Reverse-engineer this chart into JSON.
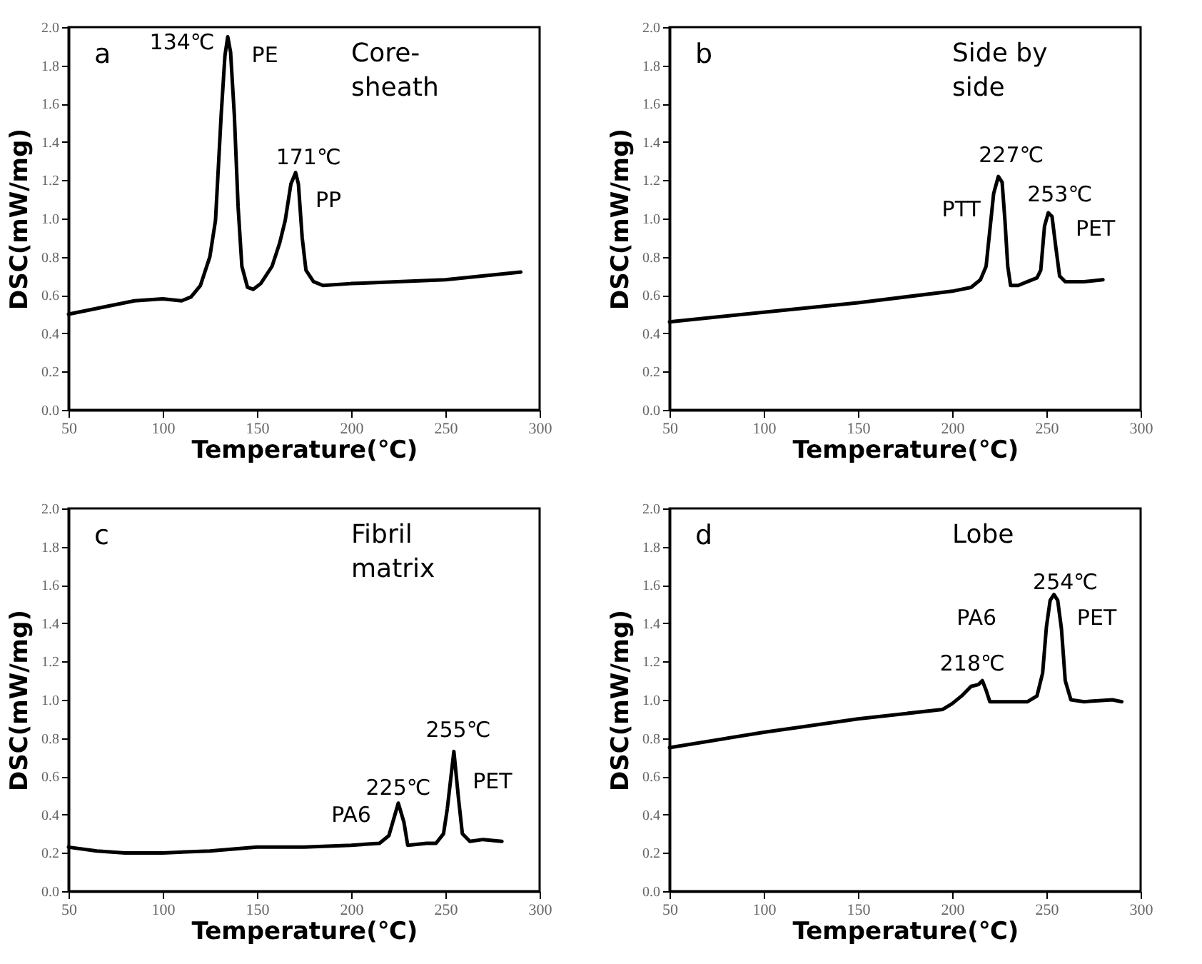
{
  "chart_data": [
    {
      "type": "line",
      "xlabel": "Temperature(℃)",
      "ylabel": "DSC(mW/mg)",
      "color": "#000000",
      "xlim": [
        50,
        300
      ],
      "ylim": [
        0,
        2
      ],
      "xticks": [
        50,
        100,
        150,
        200,
        250,
        300
      ],
      "yticks": [
        {
          "value": 0,
          "label": "0.0"
        },
        {
          "value": 0.2,
          "label": "0.2"
        },
        {
          "value": 0.4,
          "label": "0.4"
        },
        {
          "value": 0.6,
          "label": "0.6"
        },
        {
          "value": 0.8,
          "label": "0.8"
        },
        {
          "value": 1,
          "label": "1.0"
        },
        {
          "value": 1.2,
          "label": "1.2"
        },
        {
          "value": 1.4,
          "label": "1.4"
        },
        {
          "value": 1.6,
          "label": "1.6"
        },
        {
          "value": 1.8,
          "label": "1.8"
        },
        {
          "value": 2,
          "label": "2.0"
        }
      ],
      "x": [
        50,
        70,
        85,
        100,
        110,
        115,
        120,
        125,
        128,
        131,
        133,
        134.5,
        136,
        138,
        140,
        142,
        145,
        148,
        152,
        158,
        162,
        165,
        168,
        170.5,
        172,
        174,
        176,
        180,
        185,
        200,
        250,
        290
      ],
      "values": [
        0.5,
        0.54,
        0.57,
        0.58,
        0.57,
        0.59,
        0.65,
        0.8,
        0.99,
        1.54,
        1.85,
        1.95,
        1.87,
        1.54,
        1.06,
        0.75,
        0.64,
        0.63,
        0.66,
        0.75,
        0.87,
        0.99,
        1.18,
        1.24,
        1.18,
        0.9,
        0.73,
        0.67,
        0.65,
        0.66,
        0.68,
        0.72
      ],
      "annotations": [
        "a",
        "Core-sheath",
        {
          "text": "134℃",
          "x": 134.5,
          "y": 1.95
        },
        {
          "text": "PE",
          "x": 134.5,
          "y": 1.95
        },
        {
          "text": "171℃",
          "x": 170.5,
          "y": 1.24
        },
        {
          "text": "PP",
          "x": 170.5,
          "y": 1.24
        }
      ]
    },
    {
      "type": "line",
      "xlabel": "Temperature(℃)",
      "ylabel": "DSC(mW/mg)",
      "color": "#000000",
      "xlim": [
        50,
        300
      ],
      "ylim": [
        0,
        2
      ],
      "xticks": [
        50,
        100,
        150,
        200,
        250,
        300
      ],
      "yticks": [
        {
          "value": 0,
          "label": "0.0"
        },
        {
          "value": 0.2,
          "label": "0.2"
        },
        {
          "value": 0.4,
          "label": "0.4"
        },
        {
          "value": 0.6,
          "label": "0.6"
        },
        {
          "value": 0.8,
          "label": "0.8"
        },
        {
          "value": 1,
          "label": "1.0"
        },
        {
          "value": 1.2,
          "label": "1.2"
        },
        {
          "value": 1.4,
          "label": "1.4"
        },
        {
          "value": 1.6,
          "label": "1.6"
        },
        {
          "value": 1.8,
          "label": "1.8"
        },
        {
          "value": 2,
          "label": "2.0"
        }
      ],
      "x": [
        50,
        100,
        150,
        200,
        210,
        215,
        218,
        220,
        222,
        224.5,
        226.5,
        228,
        229.5,
        231,
        235,
        240,
        245,
        247,
        249,
        251,
        253,
        255,
        257,
        260,
        270,
        280
      ],
      "values": [
        0.46,
        0.51,
        0.56,
        0.62,
        0.64,
        0.68,
        0.75,
        0.94,
        1.13,
        1.22,
        1.19,
        0.99,
        0.75,
        0.65,
        0.65,
        0.67,
        0.69,
        0.73,
        0.96,
        1.03,
        1.01,
        0.85,
        0.7,
        0.67,
        0.67,
        0.68
      ],
      "annotations": [
        "b",
        "Side by side",
        {
          "text": "227℃",
          "x": 224.5,
          "y": 1.22
        },
        {
          "text": "253℃",
          "x": 251,
          "y": 1.03
        },
        {
          "text": "PTT",
          "x": 224.5,
          "y": 1.22
        },
        {
          "text": "PET",
          "x": 251,
          "y": 1.03
        }
      ]
    },
    {
      "type": "line",
      "xlabel": "Temperature(℃)",
      "ylabel": "DSC(mW/mg)",
      "color": "#000000",
      "xlim": [
        50,
        300
      ],
      "ylim": [
        0,
        2
      ],
      "xticks": [
        50,
        100,
        150,
        200,
        250,
        300
      ],
      "yticks": [
        {
          "value": 0,
          "label": "0.0"
        },
        {
          "value": 0.2,
          "label": "0.2"
        },
        {
          "value": 0.4,
          "label": "0.4"
        },
        {
          "value": 0.6,
          "label": "0.6"
        },
        {
          "value": 0.8,
          "label": "0.8"
        },
        {
          "value": 1,
          "label": "1.0"
        },
        {
          "value": 1.2,
          "label": "1.2"
        },
        {
          "value": 1.4,
          "label": "1.4"
        },
        {
          "value": 1.6,
          "label": "1.6"
        },
        {
          "value": 1.8,
          "label": "1.8"
        },
        {
          "value": 2,
          "label": "2.0"
        }
      ],
      "x": [
        50,
        65,
        80,
        100,
        125,
        150,
        175,
        200,
        215,
        220,
        225,
        228,
        230,
        240,
        245,
        249,
        251,
        254.5,
        257,
        259,
        263,
        270,
        280
      ],
      "values": [
        0.23,
        0.21,
        0.2,
        0.2,
        0.21,
        0.23,
        0.23,
        0.24,
        0.25,
        0.29,
        0.46,
        0.36,
        0.24,
        0.25,
        0.25,
        0.3,
        0.43,
        0.73,
        0.48,
        0.3,
        0.26,
        0.27,
        0.26
      ],
      "annotations": [
        "c",
        "Fibril matrix",
        {
          "text": "255℃",
          "x": 254.5,
          "y": 0.73
        },
        {
          "text": "225℃",
          "x": 225,
          "y": 0.46
        },
        {
          "text": "PA6",
          "x": 225,
          "y": 0.46
        },
        {
          "text": "PET",
          "x": 254.5,
          "y": 0.73
        }
      ]
    },
    {
      "type": "line",
      "xlabel": "Temperature(℃)",
      "ylabel": "DSC(mW/mg)",
      "color": "#000000",
      "xlim": [
        50,
        300
      ],
      "ylim": [
        0,
        2
      ],
      "xticks": [
        50,
        100,
        150,
        200,
        250,
        300
      ],
      "yticks": [
        {
          "value": 0,
          "label": "0.0"
        },
        {
          "value": 0.2,
          "label": "0.2"
        },
        {
          "value": 0.4,
          "label": "0.4"
        },
        {
          "value": 0.6,
          "label": "0.6"
        },
        {
          "value": 0.8,
          "label": "0.8"
        },
        {
          "value": 1,
          "label": "1.0"
        },
        {
          "value": 1.2,
          "label": "1.2"
        },
        {
          "value": 1.4,
          "label": "1.4"
        },
        {
          "value": 1.6,
          "label": "1.6"
        },
        {
          "value": 1.8,
          "label": "1.8"
        },
        {
          "value": 2,
          "label": "2.0"
        }
      ],
      "x": [
        50,
        100,
        150,
        195,
        200,
        205,
        210,
        214,
        216,
        218,
        220,
        225,
        240,
        245,
        248,
        250,
        252,
        254,
        256,
        258,
        260,
        263,
        270,
        285,
        290
      ],
      "values": [
        0.75,
        0.83,
        0.9,
        0.95,
        0.98,
        1.02,
        1.07,
        1.08,
        1.1,
        1.05,
        0.99,
        0.99,
        0.99,
        1.02,
        1.14,
        1.38,
        1.52,
        1.55,
        1.52,
        1.37,
        1.1,
        1.0,
        0.99,
        1.0,
        0.99
      ],
      "annotations": [
        "d",
        "Lobe",
        {
          "text": "254℃",
          "x": 254,
          "y": 1.55
        },
        {
          "text": "PET",
          "x": 254,
          "y": 1.55
        },
        {
          "text": "PA6",
          "x": 216,
          "y": 1.1
        },
        {
          "text": "218℃",
          "x": 216,
          "y": 1.1
        }
      ]
    }
  ]
}
